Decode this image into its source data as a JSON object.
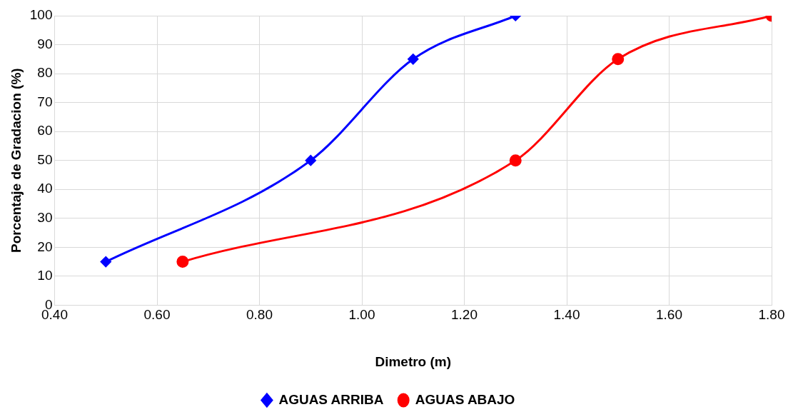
{
  "chart_data": {
    "type": "line",
    "xlabel": "Dimetro (m)",
    "ylabel": "Porcentaje de Gradacion (%)",
    "xlim": [
      0.4,
      1.8
    ],
    "xticks": [
      {
        "value": 0.4,
        "label": "0.40"
      },
      {
        "value": 0.6,
        "label": "0.60"
      },
      {
        "value": 0.8,
        "label": "0.80"
      },
      {
        "value": 1.0,
        "label": "1.00"
      },
      {
        "value": 1.2,
        "label": "1.20"
      },
      {
        "value": 1.4,
        "label": "1.40"
      },
      {
        "value": 1.6,
        "label": "1.60"
      },
      {
        "value": 1.8,
        "label": "1.80"
      }
    ],
    "ylim": [
      0,
      100
    ],
    "yticks": [
      0,
      10,
      20,
      30,
      40,
      50,
      60,
      70,
      80,
      90,
      100
    ],
    "grid": true,
    "legend": "bottom",
    "line_style": "solid",
    "series": [
      {
        "name": "AGUAS ARRIBA",
        "color": "#0000ff",
        "marker": "diamond",
        "x": [
          0.5,
          0.9,
          1.1,
          1.3
        ],
        "values": [
          15,
          50,
          85,
          100
        ]
      },
      {
        "name": "AGUAS ABAJO",
        "color": "#ff0000",
        "marker": "circle",
        "x": [
          0.65,
          1.3,
          1.5,
          1.8
        ],
        "values": [
          15,
          50,
          85,
          100
        ]
      }
    ]
  }
}
